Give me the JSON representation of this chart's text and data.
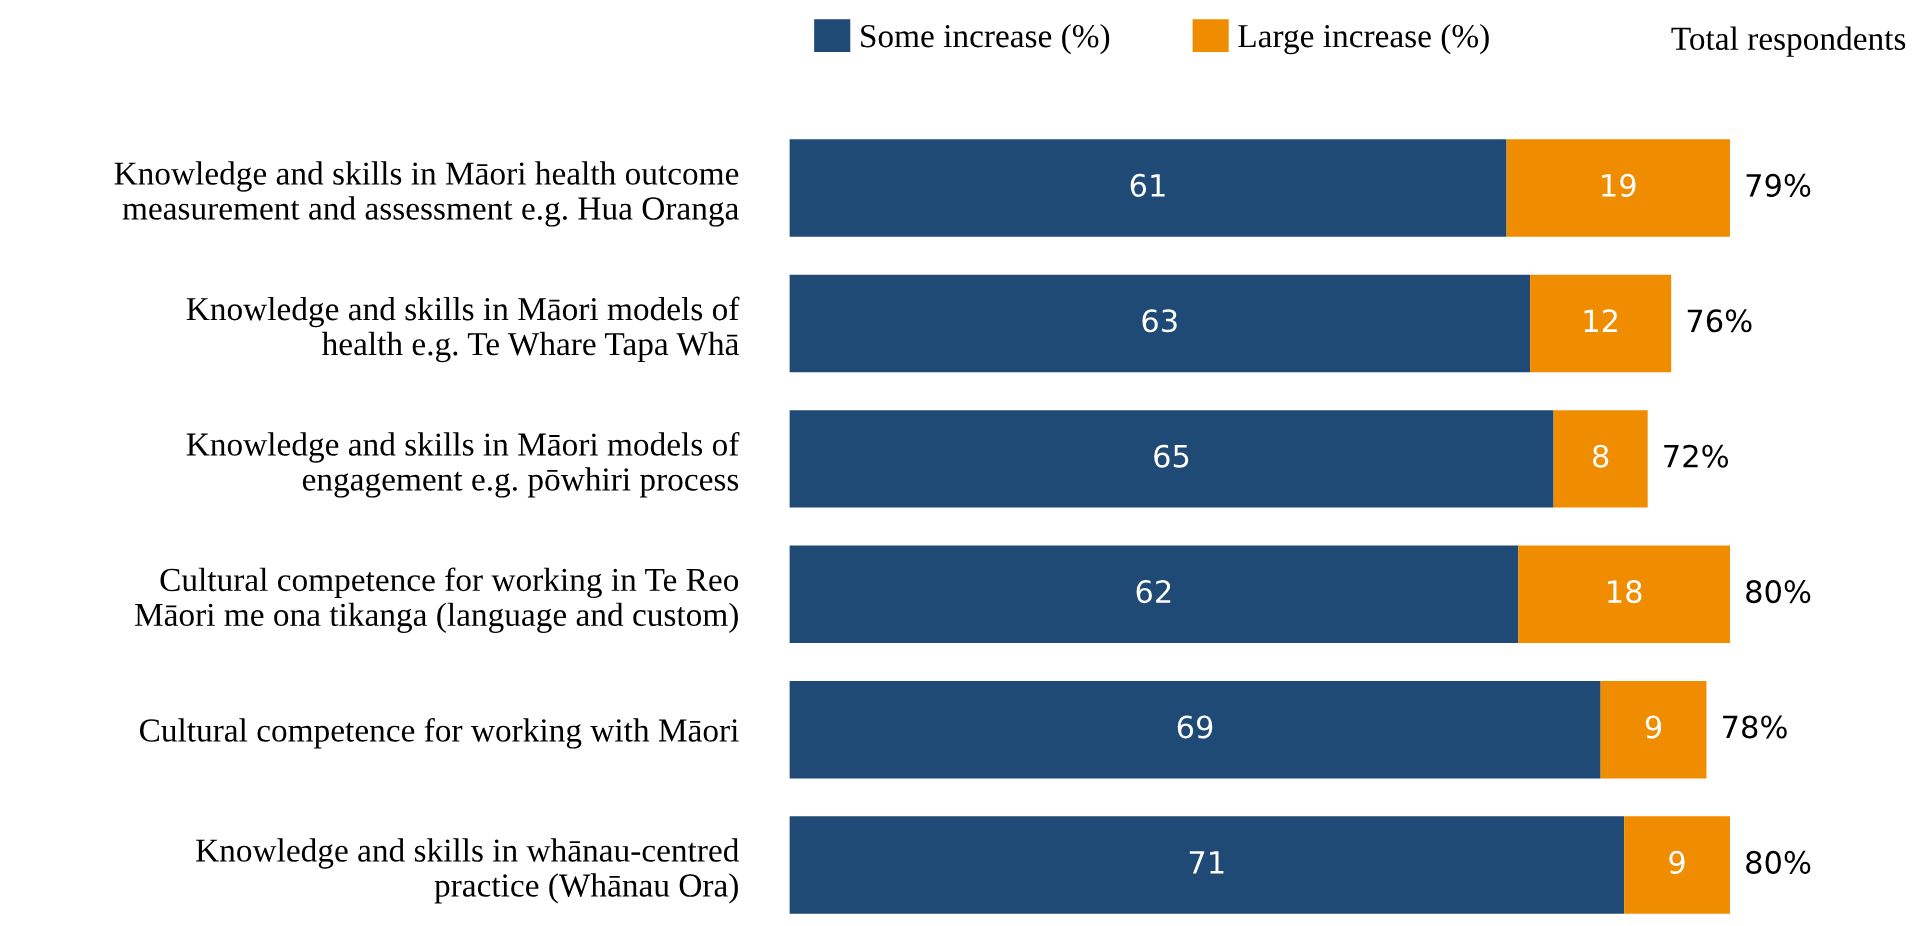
{
  "chart_data": {
    "type": "bar",
    "orientation": "horizontal",
    "stacked": true,
    "data_labels": true,
    "legend": "top",
    "grid": false,
    "categories": [
      "Knowledge and skills in Māori health outcome\nmeasurement and assessment e.g. Hua Oranga",
      "Knowledge and skills in Māori models of\nhealth e.g. Te Whare Tapa Whā",
      "Knowledge and skills in Māori models of\nengagement e.g. pōwhiri process",
      "Cultural competence for working in Te Reo\nMāori me ona tikanga (language and custom)",
      "Cultural competence for working with Māori",
      "Knowledge and skills in whānau-centred\npractice (Whānau Ora)"
    ],
    "series": [
      {
        "name": "Some increase (%)",
        "color": "#1f4a75",
        "values": [
          61,
          63,
          65,
          62,
          69,
          71
        ]
      },
      {
        "name": "Large increase (%)",
        "color": "#ef8c00",
        "values": [
          19,
          12,
          8,
          18,
          9,
          9
        ]
      }
    ],
    "totals": [
      "79%",
      "76%",
      "72%",
      "80%",
      "78%",
      "80%"
    ],
    "annotations": [
      "Total respondents"
    ]
  }
}
